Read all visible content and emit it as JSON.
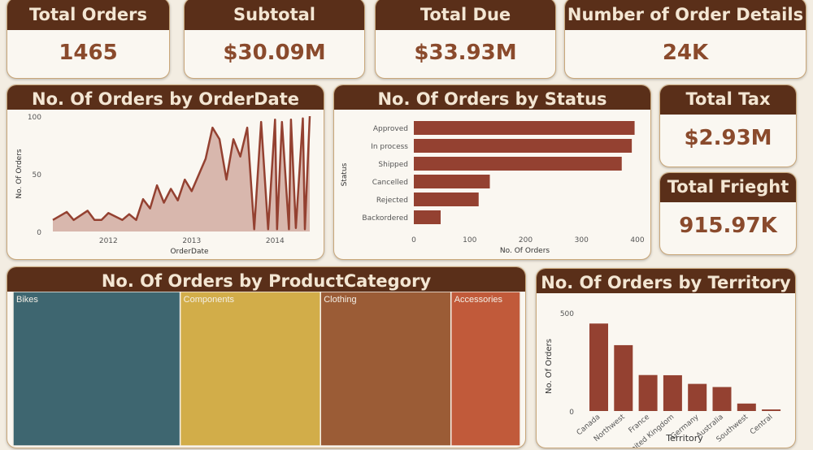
{
  "kpis": {
    "total_orders": {
      "title": "Total Orders",
      "value": "1465"
    },
    "subtotal": {
      "title": "Subtotal",
      "value": "$30.09M"
    },
    "total_due": {
      "title": "Total Due",
      "value": "$33.93M"
    },
    "order_details": {
      "title": "Number of Order Details",
      "value": "24K"
    },
    "total_tax": {
      "title": "Total Tax",
      "value": "$2.93M"
    },
    "total_freight": {
      "title": "Total Frieght",
      "value": "915.97K"
    }
  },
  "colors": {
    "header": "#5a2f19",
    "bar": "#944131",
    "area_fill": "#d4afa5",
    "bikes": "#3e6670",
    "components": "#d2ad49",
    "clothing": "#9b5c36",
    "accessories": "#c15a3a"
  },
  "chart_data": [
    {
      "type": "area",
      "title": "No. Of Orders by OrderDate",
      "xlabel": "OrderDate",
      "ylabel": "No. Of Orders",
      "yticks": [
        0,
        50,
        100
      ],
      "xticks": [
        "2012",
        "2013",
        "2014"
      ],
      "ylim": [
        0,
        100
      ],
      "x_range": [
        "2011-05",
        "2014-06"
      ],
      "x": [
        "2011-05",
        "2011-07",
        "2011-08",
        "2011-10",
        "2011-11",
        "2011-12",
        "2012-01",
        "2012-03",
        "2012-04",
        "2012-05",
        "2012-06",
        "2012-07",
        "2012-08",
        "2012-09",
        "2012-10",
        "2012-11",
        "2012-12",
        "2013-01",
        "2013-03",
        "2013-04",
        "2013-05",
        "2013-06",
        "2013-07",
        "2013-08",
        "2013-09",
        "2013-10",
        "2013-11",
        "2013-12",
        "2014-01",
        "2014-01",
        "2014-02",
        "2014-03",
        "2014-03",
        "2014-04",
        "2014-05",
        "2014-05",
        "2014-06"
      ],
      "y": [
        10,
        17,
        10,
        18,
        10,
        10,
        16,
        10,
        15,
        10,
        28,
        20,
        40,
        25,
        37,
        27,
        45,
        35,
        63,
        90,
        80,
        45,
        80,
        65,
        90,
        2,
        95,
        2,
        97,
        2,
        95,
        2,
        97,
        3,
        98,
        2,
        100
      ]
    },
    {
      "type": "bar",
      "orientation": "horizontal",
      "title": "No. Of Orders by Status",
      "xlabel": "No. Of Orders",
      "ylabel": "Status",
      "categories": [
        "Approved",
        "In process",
        "Shipped",
        "Cancelled",
        "Rejected",
        "Backordered"
      ],
      "values": [
        395,
        390,
        372,
        136,
        116,
        48
      ],
      "xticks": [
        0,
        100,
        200,
        300,
        400
      ],
      "xlim": [
        0,
        400
      ]
    },
    {
      "type": "treemap",
      "title": "No. Of Orders by ProductCategory",
      "categories": [
        "Bikes",
        "Components",
        "Clothing",
        "Accessories"
      ],
      "values": [
        205,
        172,
        160,
        85
      ]
    },
    {
      "type": "bar",
      "orientation": "vertical",
      "title": "No. Of Orders by Territory",
      "xlabel": "Territory",
      "ylabel": "No. Of Orders",
      "categories": [
        "Canada",
        "Northwest",
        "France",
        "United Kingdom",
        "Germany",
        "Australia",
        "Southwest",
        "Central"
      ],
      "values": [
        445,
        335,
        183,
        182,
        138,
        122,
        38,
        8
      ],
      "yticks": [
        0,
        500
      ],
      "ylim": [
        0,
        500
      ]
    }
  ]
}
